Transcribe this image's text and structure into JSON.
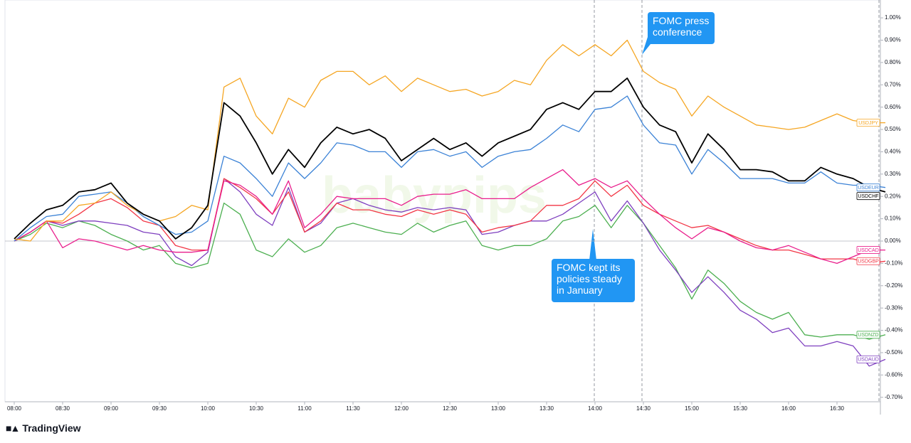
{
  "chart_data": {
    "type": "line",
    "watermark": "babypips",
    "brand": "TradingView",
    "annotations": [
      "FOMC press conference",
      "FOMC kept its policies steady in January"
    ],
    "categories": [
      "08:00",
      null,
      null,
      "08:30",
      null,
      null,
      "09:00",
      null,
      null,
      "09:30",
      null,
      null,
      "10:00",
      null,
      null,
      "10:30",
      null,
      null,
      "11:00",
      null,
      null,
      "11:30",
      null,
      null,
      "12:00",
      null,
      null,
      "12:30",
      null,
      null,
      "13:00",
      null,
      null,
      "13:30",
      null,
      null,
      "14:00",
      null,
      null,
      "14:30",
      null,
      null,
      "15:00",
      null,
      null,
      "15:30",
      null,
      null,
      "16:00",
      null,
      null,
      "16:30",
      null,
      null,
      null
    ],
    "ylim": [
      -0.72,
      1.08
    ],
    "yticks": [
      {
        "value": -0.7,
        "label": "-0.70%"
      },
      {
        "value": -0.6,
        "label": "-0.60%"
      },
      {
        "value": -0.5,
        "label": "-0.50%"
      },
      {
        "value": -0.4,
        "label": "-0.40%"
      },
      {
        "value": -0.3,
        "label": "-0.30%"
      },
      {
        "value": -0.2,
        "label": "-0.20%"
      },
      {
        "value": -0.1,
        "label": "-0.10%"
      },
      {
        "value": 0,
        "label": "0.00%"
      },
      {
        "value": 0.1,
        "label": "0.10%"
      },
      {
        "value": 0.2,
        "label": "0.20%"
      },
      {
        "value": 0.3,
        "label": "0.30%"
      },
      {
        "value": 0.4,
        "label": "0.40%"
      },
      {
        "value": 0.5,
        "label": "0.50%"
      },
      {
        "value": 0.6,
        "label": "0.60%"
      },
      {
        "value": 0.7,
        "label": "0.70%"
      },
      {
        "value": 0.8,
        "label": "0.80%"
      },
      {
        "value": 0.9,
        "label": "0.90%"
      },
      {
        "value": 1.0,
        "label": "1.00%"
      }
    ],
    "series": [
      {
        "name": "USDNZD",
        "color": "#4caf50",
        "values": [
          0.0,
          0.03,
          0.08,
          0.06,
          0.09,
          0.07,
          0.03,
          0.0,
          -0.04,
          -0.02,
          -0.1,
          -0.12,
          -0.1,
          0.17,
          0.12,
          -0.04,
          -0.07,
          0.01,
          -0.05,
          -0.02,
          0.06,
          0.08,
          0.06,
          0.04,
          0.03,
          0.08,
          0.04,
          0.07,
          0.09,
          -0.02,
          -0.04,
          -0.02,
          -0.02,
          0.01,
          0.09,
          0.11,
          0.16,
          0.06,
          0.16,
          0.08,
          -0.02,
          -0.12,
          -0.26,
          -0.13,
          -0.19,
          -0.27,
          -0.32,
          -0.35,
          -0.32,
          -0.42,
          -0.43,
          -0.42,
          -0.42,
          -0.44,
          -0.42
        ]
      },
      {
        "name": "USDAUD",
        "color": "#7e3fbf",
        "values": [
          0.0,
          0.04,
          0.09,
          0.07,
          0.09,
          0.09,
          0.08,
          0.07,
          0.04,
          0.03,
          -0.07,
          -0.11,
          -0.05,
          0.28,
          0.22,
          0.12,
          0.07,
          0.24,
          0.04,
          0.08,
          0.17,
          0.19,
          0.16,
          0.14,
          0.13,
          0.15,
          0.14,
          0.15,
          0.14,
          0.03,
          0.04,
          0.07,
          0.09,
          0.09,
          0.12,
          0.17,
          0.22,
          0.09,
          0.18,
          0.08,
          -0.04,
          -0.13,
          -0.23,
          -0.16,
          -0.23,
          -0.31,
          -0.35,
          -0.41,
          -0.39,
          -0.47,
          -0.47,
          -0.45,
          -0.47,
          -0.56,
          -0.53
        ]
      },
      {
        "name": "USDGBP",
        "color": "#f23645",
        "values": [
          0.0,
          0.04,
          0.09,
          0.08,
          0.12,
          0.17,
          0.19,
          0.15,
          0.09,
          0.07,
          -0.02,
          -0.04,
          -0.04,
          0.28,
          0.24,
          0.19,
          0.12,
          0.22,
          0.04,
          0.09,
          0.17,
          0.14,
          0.14,
          0.12,
          0.11,
          0.14,
          0.12,
          0.14,
          0.12,
          0.04,
          0.06,
          0.07,
          0.09,
          0.16,
          0.16,
          0.19,
          0.27,
          0.2,
          0.25,
          0.16,
          0.12,
          0.09,
          0.06,
          0.07,
          0.04,
          0.01,
          -0.02,
          -0.04,
          -0.04,
          -0.06,
          -0.08,
          -0.08,
          -0.08,
          -0.1,
          -0.09
        ]
      },
      {
        "name": "USDCAD",
        "color": "#e91e8c",
        "values": [
          0.0,
          0.04,
          0.09,
          -0.03,
          0.01,
          0.0,
          -0.02,
          -0.04,
          -0.02,
          -0.04,
          -0.05,
          -0.05,
          -0.04,
          0.27,
          0.25,
          0.2,
          0.12,
          0.27,
          0.06,
          0.12,
          0.2,
          0.19,
          0.19,
          0.19,
          0.16,
          0.2,
          0.21,
          0.21,
          0.23,
          0.19,
          0.19,
          0.19,
          0.24,
          0.28,
          0.32,
          0.25,
          0.28,
          0.24,
          0.27,
          0.19,
          0.12,
          0.06,
          0.01,
          0.06,
          0.04,
          0.0,
          -0.03,
          -0.04,
          -0.02,
          -0.05,
          -0.08,
          -0.1,
          -0.07,
          -0.04,
          -0.04
        ]
      },
      {
        "name": "USDEUR",
        "color": "#3b82d6",
        "values": [
          0.0,
          0.06,
          0.11,
          0.12,
          0.2,
          0.21,
          0.22,
          0.17,
          0.11,
          0.07,
          0.03,
          0.04,
          0.09,
          0.38,
          0.35,
          0.28,
          0.2,
          0.35,
          0.28,
          0.35,
          0.44,
          0.43,
          0.4,
          0.4,
          0.33,
          0.4,
          0.41,
          0.38,
          0.4,
          0.33,
          0.38,
          0.4,
          0.41,
          0.46,
          0.52,
          0.49,
          0.59,
          0.6,
          0.65,
          0.52,
          0.44,
          0.43,
          0.3,
          0.41,
          0.35,
          0.28,
          0.28,
          0.28,
          0.26,
          0.26,
          0.31,
          0.26,
          0.25,
          0.25,
          0.24
        ]
      },
      {
        "name": "USDJPY",
        "color": "#f5a623",
        "values": [
          0.01,
          0.0,
          0.09,
          0.09,
          0.16,
          0.17,
          0.22,
          0.16,
          0.12,
          0.09,
          0.11,
          0.16,
          0.14,
          0.69,
          0.73,
          0.56,
          0.48,
          0.64,
          0.6,
          0.72,
          0.76,
          0.76,
          0.7,
          0.74,
          0.67,
          0.73,
          0.7,
          0.67,
          0.68,
          0.65,
          0.67,
          0.72,
          0.7,
          0.81,
          0.88,
          0.83,
          0.88,
          0.83,
          0.9,
          0.76,
          0.71,
          0.68,
          0.56,
          0.65,
          0.6,
          0.56,
          0.52,
          0.51,
          0.5,
          0.51,
          0.54,
          0.57,
          0.54,
          0.53,
          0.53
        ]
      },
      {
        "name": "USDCHF",
        "color": "#000000",
        "values": [
          0.01,
          0.08,
          0.14,
          0.16,
          0.22,
          0.23,
          0.26,
          0.17,
          0.12,
          0.09,
          0.01,
          0.06,
          0.16,
          0.62,
          0.56,
          0.44,
          0.3,
          0.41,
          0.33,
          0.44,
          0.51,
          0.48,
          0.5,
          0.46,
          0.36,
          0.41,
          0.46,
          0.41,
          0.44,
          0.38,
          0.44,
          0.47,
          0.5,
          0.59,
          0.62,
          0.59,
          0.67,
          0.67,
          0.73,
          0.6,
          0.52,
          0.49,
          0.35,
          0.48,
          0.41,
          0.32,
          0.32,
          0.31,
          0.27,
          0.27,
          0.33,
          0.3,
          0.28,
          0.24,
          0.22
        ]
      }
    ]
  }
}
